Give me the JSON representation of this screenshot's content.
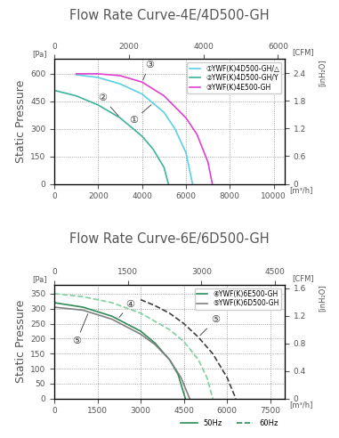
{
  "chart_data": [
    {
      "type": "line",
      "title": "Flow Rate Curve-4E/4D500-GH",
      "y_label": "Static Pressure",
      "y_unit": "[Pa]",
      "y2_unit": "[inH₂O]",
      "x_unit": "[m³/h]",
      "x2_unit": "[CFM]",
      "xlim": [
        0,
        10500
      ],
      "xticks": [
        0,
        2000,
        4000,
        6000,
        8000,
        10000
      ],
      "x2lim": [
        0,
        6180
      ],
      "x2ticks": [
        0,
        2000,
        4000,
        6000
      ],
      "ylim": [
        0,
        680
      ],
      "yticks": [
        0,
        150,
        300,
        450,
        600
      ],
      "y2lim": [
        0,
        2.7
      ],
      "y2ticks": [
        0,
        0.6,
        1.2,
        1.8,
        2.4
      ],
      "grid": true,
      "legend": "upper right",
      "series": [
        {
          "name": "①YWF(K)4D500-GH/△",
          "color": "#5ad0e4",
          "line_style": "solid",
          "x": [
            1000,
            2000,
            3000,
            4000,
            5000,
            5500,
            6000,
            6300
          ],
          "values": [
            595,
            580,
            545,
            490,
            390,
            300,
            170,
            0
          ]
        },
        {
          "name": "②YWF(K)4D500-GH/Y",
          "color": "#3cb39a",
          "line_style": "solid",
          "x": [
            0,
            1000,
            2000,
            3000,
            4000,
            4500,
            5000,
            5200
          ],
          "values": [
            510,
            480,
            430,
            360,
            260,
            190,
            90,
            0
          ]
        },
        {
          "name": "③YWF(K)4E500-GH",
          "color": "#e040d0",
          "line_style": "solid",
          "x": [
            1000,
            2000,
            3000,
            4000,
            5000,
            6000,
            6500,
            7000,
            7200
          ],
          "values": [
            600,
            600,
            590,
            555,
            480,
            360,
            270,
            120,
            0
          ]
        }
      ],
      "annotations": [
        {
          "text": "③",
          "x": 4000,
          "y": 555
        },
        {
          "text": "②",
          "x": 3000,
          "y": 360
        },
        {
          "text": "①",
          "x": 4500,
          "y": 440
        }
      ]
    },
    {
      "type": "line",
      "title": "Flow Rate Curve-6E/6D500-GH",
      "y_label": "Static Pressure",
      "y_unit": "[Pa]",
      "y2_unit": "[inH₂O]",
      "x_unit": "[m³/h]",
      "x2_unit": "[CFM]",
      "xlim": [
        0,
        8000
      ],
      "xticks": [
        0,
        1500,
        3000,
        4500,
        6000,
        7500
      ],
      "x2lim": [
        0,
        4700
      ],
      "x2ticks": [
        0,
        1500,
        3000,
        4500
      ],
      "ylim": [
        0,
        380
      ],
      "yticks": [
        0,
        50,
        100,
        150,
        200,
        250,
        300,
        350
      ],
      "y2lim": [
        0,
        1.65
      ],
      "y2ticks": [
        0,
        0.4,
        0.8,
        1.2,
        1.6
      ],
      "grid": true,
      "legend": "upper right",
      "series": [
        {
          "name": "④YWF(K)6E500-GH",
          "color": "#2e8b57",
          "line_style": "solid",
          "x": [
            0,
            1000,
            2000,
            3000,
            3500,
            4000,
            4300,
            4550
          ],
          "values": [
            320,
            305,
            275,
            225,
            185,
            130,
            80,
            0
          ]
        },
        {
          "name": "⑤YWF(K)6D500-GH",
          "color": "#808080",
          "line_style": "solid",
          "x": [
            0,
            1000,
            2000,
            3000,
            3500,
            4000,
            4400,
            4700
          ],
          "values": [
            305,
            295,
            265,
            215,
            180,
            130,
            70,
            0
          ]
        },
        {
          "name": "④YWF(K)6E500-GH",
          "color": "#7fcf9f",
          "line_style": "dashed",
          "x": [
            0,
            1000,
            2000,
            3000,
            4000,
            4500,
            5000,
            5300,
            5500
          ],
          "values": [
            350,
            340,
            320,
            285,
            230,
            190,
            130,
            70,
            0
          ]
        },
        {
          "name": "⑤YWF(K)6D500-GH",
          "color": "#404040",
          "line_style": "dashed",
          "x": [
            3000,
            3500,
            4000,
            4500,
            5000,
            5500,
            6000,
            6300
          ],
          "values": [
            330,
            310,
            285,
            250,
            205,
            150,
            70,
            0
          ]
        }
      ],
      "annotations": [
        {
          "text": "④",
          "x": 2200,
          "y": 265
        },
        {
          "text": "⑤",
          "x": 1200,
          "y": 290
        },
        {
          "text": "⑤",
          "x": 5000,
          "y": 205
        }
      ],
      "frequency_legend": [
        {
          "label": "50Hz",
          "line_style": "solid",
          "color": "#2e8b57"
        },
        {
          "label": "60Hz",
          "line_style": "dashed",
          "color": "#2e8b57"
        }
      ]
    }
  ]
}
